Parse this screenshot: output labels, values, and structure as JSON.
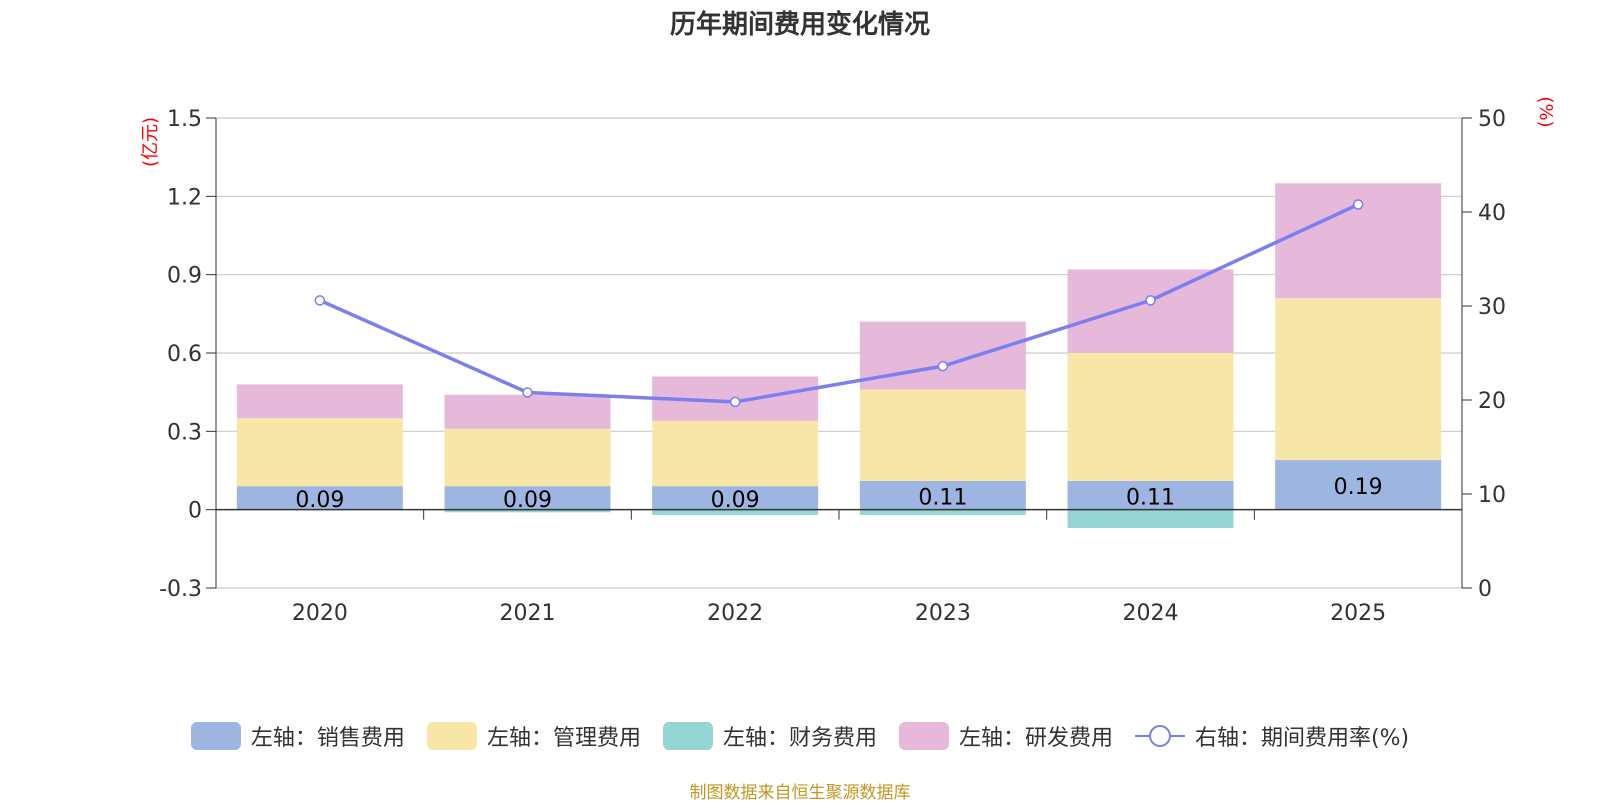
{
  "chart_data": {
    "type": "bar",
    "title": "历年期间费用变化情况",
    "categories": [
      "2020",
      "2021",
      "2022",
      "2023",
      "2024",
      "2025"
    ],
    "left_axis": {
      "unit": "(亿元)",
      "ylim": [
        -0.3,
        1.5
      ],
      "ticks": [
        "1.5",
        "1.2",
        "0.9",
        "0.6",
        "0.3",
        "0",
        "-0.3"
      ],
      "tick_values": [
        1.5,
        1.2,
        0.9,
        0.6,
        0.3,
        0,
        -0.3
      ]
    },
    "right_axis": {
      "unit": "(%)",
      "ylim": [
        0,
        50
      ],
      "ticks": [
        "50",
        "40",
        "30",
        "20",
        "10",
        "0"
      ],
      "tick_values": [
        50,
        40,
        30,
        20,
        10,
        0
      ]
    },
    "series": [
      {
        "name": "左轴：销售费用",
        "color": "#9db6e1",
        "type": "bar",
        "values": [
          0.09,
          0.09,
          0.09,
          0.11,
          0.11,
          0.19
        ],
        "labels": [
          "0.09",
          "0.09",
          "0.09",
          "0.11",
          "0.11",
          "0.19"
        ]
      },
      {
        "name": "左轴：管理费用",
        "color": "#f8e6a8",
        "type": "bar",
        "values": [
          0.26,
          0.22,
          0.25,
          0.35,
          0.49,
          0.62
        ]
      },
      {
        "name": "左轴：财务费用",
        "color": "#94d4d2",
        "type": "bar",
        "values": [
          0.0,
          -0.01,
          -0.02,
          -0.02,
          -0.07,
          0.0
        ]
      },
      {
        "name": "左轴：研发费用",
        "color": "#e6b9da",
        "type": "bar",
        "values": [
          0.13,
          0.13,
          0.17,
          0.26,
          0.32,
          0.44
        ]
      },
      {
        "name": "右轴：期间费用率(%)",
        "color": "#7b7ff0",
        "type": "line",
        "axis": "right",
        "values": [
          30.6,
          20.8,
          19.8,
          23.6,
          30.6,
          40.8
        ]
      }
    ],
    "source": "制图数据来自恒生聚源数据库"
  }
}
